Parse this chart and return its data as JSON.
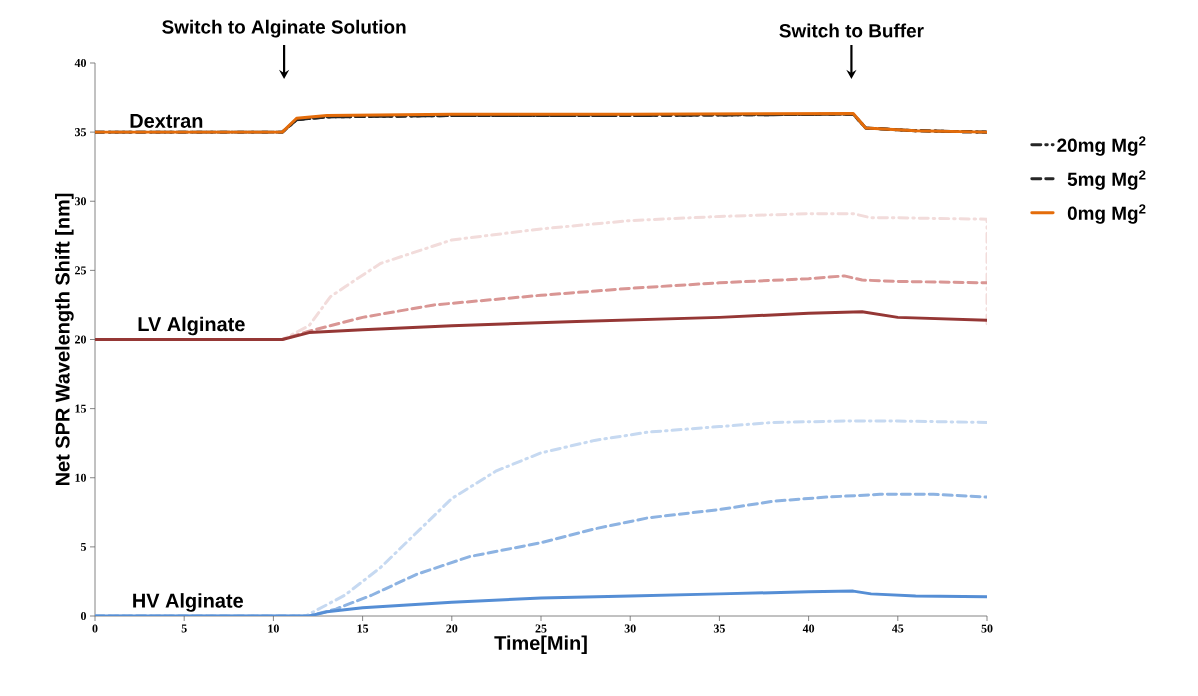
{
  "chart_data": {
    "type": "line",
    "xlabel": "Time[Min]",
    "ylabel": "Net SPR Wavelength Shift [nm]",
    "xlim": [
      0,
      50
    ],
    "xticks": [
      0,
      5,
      10,
      15,
      20,
      25,
      30,
      35,
      40,
      45,
      50
    ],
    "ylim": [
      0,
      40
    ],
    "yticks": [
      0,
      5,
      10,
      15,
      20,
      25,
      30,
      35,
      40
    ],
    "grid": false,
    "legend": "right",
    "marker": "none",
    "ref_lines": [
      {
        "axis": "x",
        "value": 10.6,
        "label": "Switch to Alginate Solution",
        "color": "#000000"
      },
      {
        "axis": "x",
        "value": 42.4,
        "label": "Switch to Buffer",
        "color": "#000000"
      }
    ],
    "annotations": [
      {
        "text": "Dextran",
        "x": 4,
        "y": 35
      },
      {
        "text": "LV Alginate",
        "x": 5.4,
        "y": 20
      },
      {
        "text": "HV Alginate",
        "x": 5.2,
        "y": 0
      }
    ],
    "series": [
      {
        "name": "20mg Mg$^{2}$",
        "color": "#262626",
        "line_style": "dashdot",
        "x": [
          0,
          10.5,
          11.3,
          13,
          20,
          30,
          42.5,
          43.2,
          46,
          50
        ],
        "values": [
          35,
          35,
          35.9,
          36.1,
          36.2,
          36.2,
          36.3,
          35.3,
          35.1,
          35.0
        ]
      },
      {
        "name": "5mg Mg$^{2}$",
        "color": "#262626",
        "line_style": "dashed",
        "x": [
          0,
          10.5,
          11.3,
          13,
          20,
          30,
          42.5,
          43.2,
          46,
          50
        ],
        "values": [
          35,
          35,
          35.9,
          36.1,
          36.2,
          36.2,
          36.3,
          35.3,
          35.1,
          35.0
        ]
      },
      {
        "name": "0mg Mg$^{2}$",
        "color": "#e46c0a",
        "line_style": "solid",
        "x": [
          0,
          10.5,
          11.3,
          13,
          20,
          30,
          42.5,
          43.2,
          46,
          50
        ],
        "values": [
          35,
          35,
          36.0,
          36.2,
          36.3,
          36.3,
          36.35,
          35.3,
          35.1,
          35.0
        ]
      },
      {
        "color": "#f2dcdb",
        "line_style": "dashdot",
        "x": [
          0,
          10.5,
          12,
          13.2,
          14,
          16,
          20,
          25,
          30,
          35,
          40,
          42.5,
          43.5,
          45,
          50,
          50
        ],
        "values": [
          20,
          20,
          21,
          23.1,
          23.8,
          25.5,
          27.2,
          28.0,
          28.6,
          28.9,
          29.1,
          29.1,
          28.8,
          28.8,
          28.7,
          20.8
        ]
      },
      {
        "color": "#d99694",
        "line_style": "dashed",
        "x": [
          0,
          10.5,
          12,
          15,
          19,
          25,
          30,
          35,
          40,
          42,
          43,
          45,
          50
        ],
        "values": [
          20,
          20,
          20.6,
          21.6,
          22.5,
          23.2,
          23.7,
          24.1,
          24.4,
          24.6,
          24.3,
          24.2,
          24.1
        ]
      },
      {
        "color": "#953735",
        "line_style": "solid",
        "x": [
          0,
          10.5,
          12,
          15,
          20,
          27,
          35,
          40,
          43,
          45,
          50
        ],
        "values": [
          20,
          20,
          20.5,
          20.7,
          21.0,
          21.3,
          21.6,
          21.9,
          22.0,
          21.6,
          21.4
        ]
      },
      {
        "color": "#c6d9f1",
        "line_style": "dashdot",
        "x": [
          0,
          11.8,
          14,
          16,
          18,
          20,
          22.5,
          25,
          28,
          31,
          35,
          38,
          42,
          45,
          50
        ],
        "values": [
          0,
          0,
          1.5,
          3.5,
          6,
          8.5,
          10.5,
          11.8,
          12.7,
          13.3,
          13.7,
          14.0,
          14.1,
          14.1,
          14.0
        ]
      },
      {
        "color": "#8db3e2",
        "line_style": "dashed",
        "x": [
          0,
          12,
          13.5,
          15.5,
          18,
          21,
          25,
          28,
          31,
          35,
          38,
          41,
          44,
          47,
          50
        ],
        "values": [
          0,
          0,
          0.5,
          1.5,
          3,
          4.3,
          5.3,
          6.3,
          7.1,
          7.7,
          8.3,
          8.6,
          8.8,
          8.8,
          8.6
        ]
      },
      {
        "color": "#558ed5",
        "line_style": "solid",
        "x": [
          0,
          12,
          13,
          15,
          20,
          25,
          30,
          35,
          40,
          42.5,
          43.5,
          46,
          50
        ],
        "values": [
          0,
          0,
          0.3,
          0.6,
          1.0,
          1.3,
          1.45,
          1.6,
          1.75,
          1.8,
          1.6,
          1.45,
          1.4
        ]
      }
    ]
  }
}
